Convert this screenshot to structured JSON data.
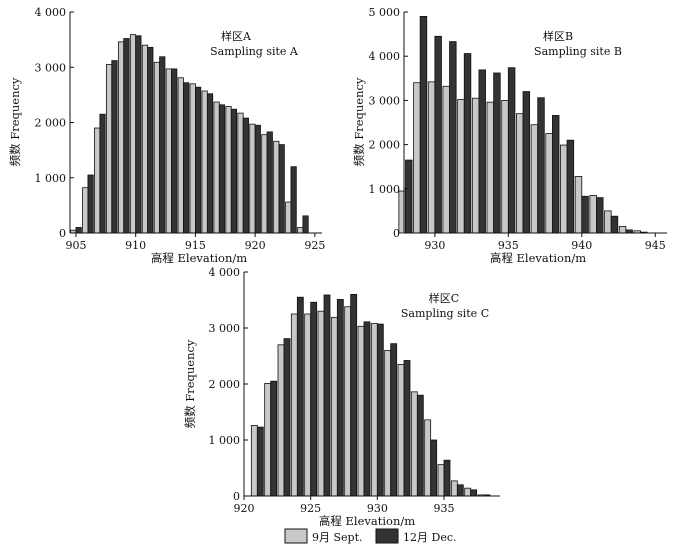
{
  "chart_data": [
    {
      "type": "bar",
      "id": "A",
      "title_cn": "样区A",
      "title_en": "Sampling site A",
      "xlabel": "高程 Elevation/m",
      "ylabel": "频数 Frequency",
      "xlim": [
        904.5,
        925.6
      ],
      "ylim": [
        0,
        4000
      ],
      "xticks": [
        905,
        910,
        915,
        920,
        925
      ],
      "yticks": [
        0,
        1000,
        2000,
        3000,
        4000
      ],
      "ytick_labels": [
        "0",
        "1 000",
        "2 000",
        "3 000",
        "4 000"
      ],
      "x": [
        905,
        906,
        907,
        908,
        909,
        910,
        911,
        912,
        913,
        914,
        915,
        916,
        917,
        918,
        919,
        920,
        921,
        922,
        923,
        924
      ],
      "series": [
        {
          "name": "9月 Sept.",
          "values": [
            50,
            820,
            1900,
            3050,
            3460,
            3590,
            3400,
            3090,
            2970,
            2810,
            2700,
            2570,
            2370,
            2290,
            2170,
            1970,
            1780,
            1660,
            560,
            100
          ]
        },
        {
          "name": "12月 Dec.",
          "values": [
            100,
            1050,
            2150,
            3120,
            3520,
            3570,
            3360,
            3190,
            2970,
            2720,
            2640,
            2520,
            2320,
            2240,
            2080,
            1950,
            1830,
            1600,
            1200,
            310
          ]
        }
      ]
    },
    {
      "type": "bar",
      "id": "B",
      "title_cn": "样区B",
      "title_en": "Sampling site B",
      "xlabel": "高程 Elevation/m",
      "ylabel": "频数 Frequency",
      "xlim": [
        927.9,
        945.8
      ],
      "ylim": [
        0,
        5000
      ],
      "xticks": [
        930,
        935,
        940,
        945
      ],
      "yticks": [
        0,
        1000,
        2000,
        3000,
        4000,
        5000
      ],
      "ytick_labels": [
        "0",
        "1 000",
        "2 000",
        "3 000",
        "4 000",
        "5 000"
      ],
      "x": [
        928,
        929,
        930,
        931,
        932,
        933,
        934,
        935,
        936,
        937,
        938,
        939,
        940,
        941,
        942,
        943,
        944
      ],
      "series": [
        {
          "name": "9月 Sept.",
          "values": [
            950,
            3400,
            3420,
            3320,
            3020,
            3050,
            2960,
            3000,
            2700,
            2450,
            2250,
            1990,
            1280,
            850,
            500,
            150,
            50
          ]
        },
        {
          "name": "12月 Dec.",
          "values": [
            1650,
            4900,
            4450,
            4330,
            4060,
            3690,
            3620,
            3740,
            3200,
            3060,
            2660,
            2100,
            830,
            800,
            380,
            70,
            20
          ]
        }
      ]
    },
    {
      "type": "bar",
      "id": "C",
      "title_cn": "样区C",
      "title_en": "Sampling site C",
      "xlabel": "高程 Elevation/m",
      "ylabel": "频数 Frequency",
      "xlim": [
        920,
        939.2
      ],
      "ylim": [
        0,
        4000
      ],
      "xticks": [
        920,
        925,
        930,
        935
      ],
      "yticks": [
        0,
        1000,
        2000,
        3000,
        4000
      ],
      "ytick_labels": [
        "0",
        "1 000",
        "2 000",
        "3 000",
        "4 000"
      ],
      "x": [
        921,
        922,
        923,
        924,
        925,
        926,
        927,
        928,
        929,
        930,
        931,
        932,
        933,
        934,
        935,
        936,
        937,
        938
      ],
      "series": [
        {
          "name": "9月 Sept.",
          "values": [
            1260,
            2010,
            2700,
            3250,
            3250,
            3300,
            3190,
            3380,
            3030,
            3080,
            2600,
            2350,
            1860,
            1360,
            560,
            270,
            140,
            20
          ]
        },
        {
          "name": "12月 Dec.",
          "values": [
            1230,
            2050,
            2810,
            3550,
            3460,
            3590,
            3510,
            3600,
            3110,
            3070,
            2720,
            2420,
            1800,
            1000,
            640,
            200,
            110,
            20
          ]
        }
      ]
    }
  ],
  "legend": {
    "items": [
      {
        "label": "9月 Sept.",
        "color": "#c8c8c8"
      },
      {
        "label": "12月 Dec.",
        "color": "#333333"
      }
    ]
  }
}
